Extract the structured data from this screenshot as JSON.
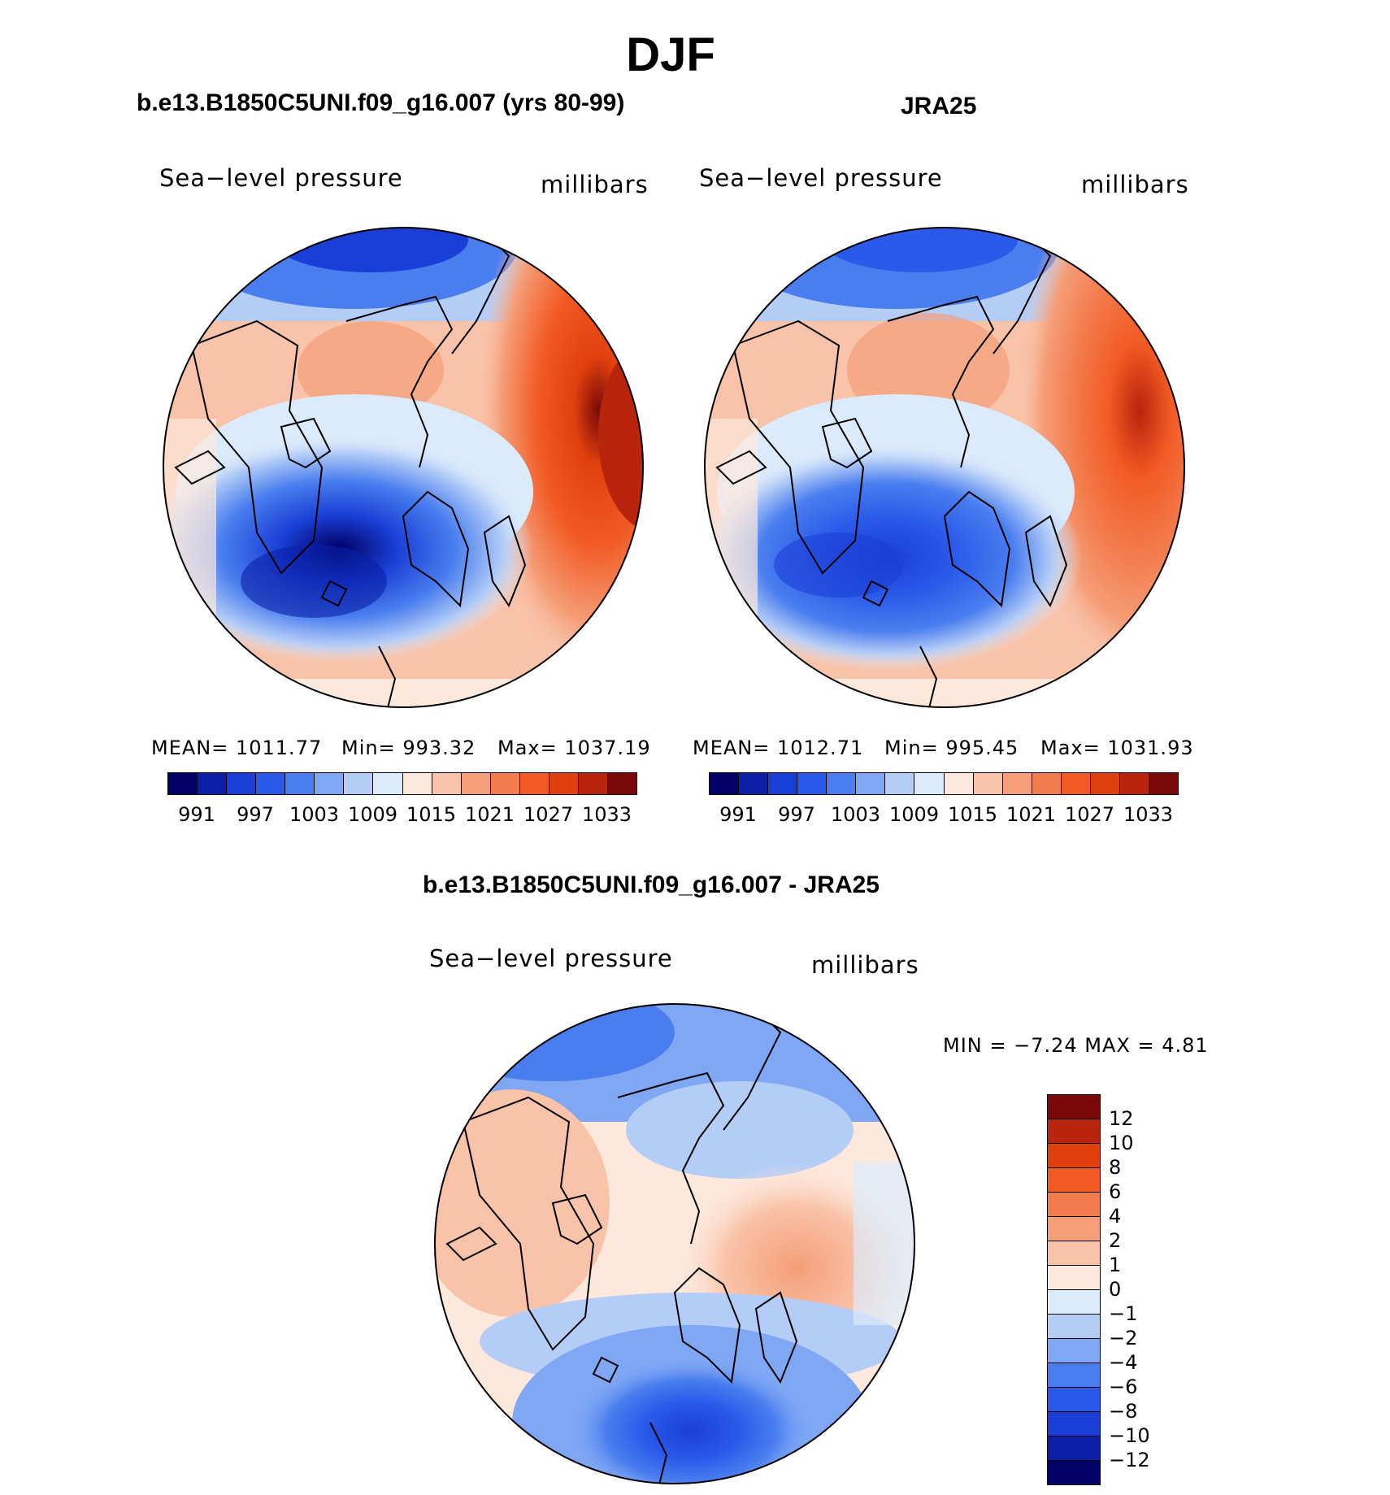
{
  "title": "DJF",
  "panels": [
    {
      "heading": "b.e13.B1850C5UNI.f09_g16.007 (yrs 80-99)",
      "variable": "Sea−level pressure",
      "units": "millibars",
      "stats": {
        "mean": "MEAN=  1011.77",
        "min": "Min=  993.32",
        "max": "Max=  1037.19"
      }
    },
    {
      "heading": "JRA25",
      "variable": "Sea−level pressure",
      "units": "millibars",
      "stats": {
        "mean": "MEAN=  1012.71",
        "min": "Min=  995.45",
        "max": "Max=  1031.93"
      }
    },
    {
      "heading": "b.e13.B1850C5UNI.f09_g16.007 - JRA25",
      "variable": "Sea−level pressure",
      "units": "millibars",
      "stats": {
        "minmax": "MIN =    −7.24  MAX =     4.81"
      }
    }
  ],
  "abs_colorbar": {
    "colors": [
      "#000066",
      "#0a1fa6",
      "#1a3fd6",
      "#2b5aea",
      "#4a7eef",
      "#7fa7f4",
      "#b4cdf7",
      "#dcebfb",
      "#fde8dc",
      "#f9c3a9",
      "#f59e78",
      "#f37c4d",
      "#f25a24",
      "#e0400c",
      "#b8240c",
      "#7a0a0a"
    ],
    "labels": [
      "991",
      "997",
      "1003",
      "1009",
      "1015",
      "1021",
      "1027",
      "1033"
    ]
  },
  "diff_colorbar": {
    "colors": [
      "#000066",
      "#0a1fa6",
      "#1a3fd6",
      "#2b5aea",
      "#4a7eef",
      "#7fa7f4",
      "#b4cdf7",
      "#dcebfb",
      "#fde8dc",
      "#f9c3a9",
      "#f59e78",
      "#f37c4d",
      "#f25a24",
      "#e0400c",
      "#b8240c",
      "#7a0a0a"
    ],
    "labels": [
      "12",
      "10",
      "8",
      "6",
      "4",
      "2",
      "1",
      "0",
      "−1",
      "−2",
      "−4",
      "−6",
      "−8",
      "−10",
      "−12"
    ]
  }
}
